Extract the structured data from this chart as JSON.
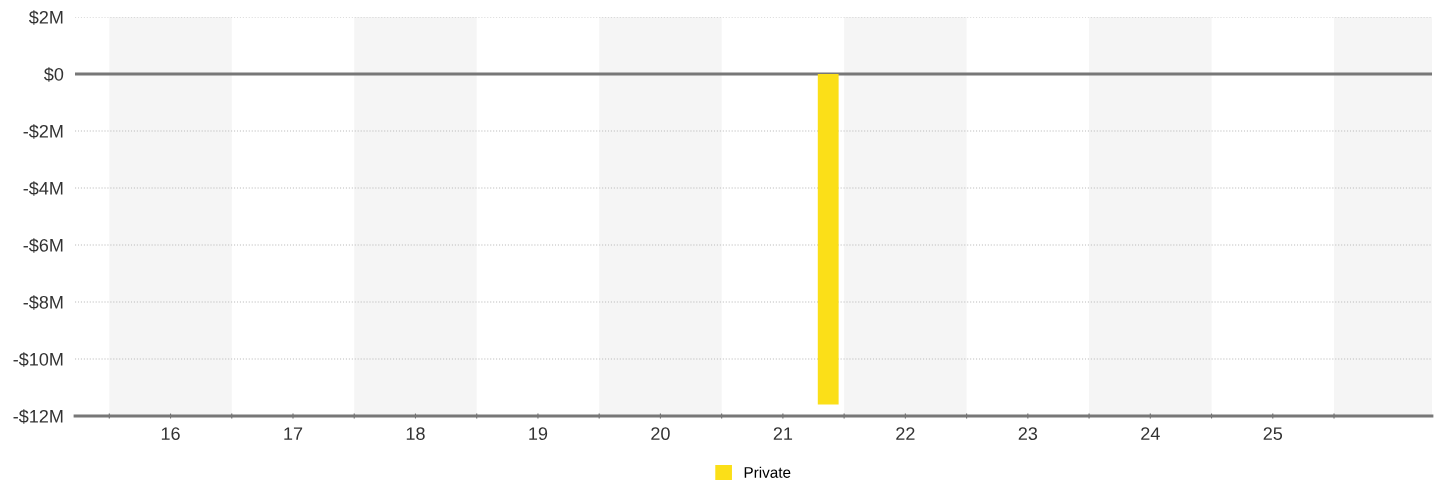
{
  "chart_data": {
    "type": "bar",
    "x": [
      21.37
    ],
    "series": [
      {
        "name": "Private",
        "color": "#fbdf18",
        "values": [
          -11.6
        ]
      }
    ],
    "xlim": [
      15.22,
      26.3
    ],
    "xticks": [
      {
        "value": 15.5,
        "label": null
      },
      16,
      {
        "value": 16.5,
        "label": null
      },
      17,
      {
        "value": 17.5,
        "label": null
      },
      18,
      {
        "value": 18.5,
        "label": null
      },
      19,
      {
        "value": 19.5,
        "label": null
      },
      20,
      {
        "value": 20.5,
        "label": null
      },
      21,
      {
        "value": 21.5,
        "label": null
      },
      22,
      {
        "value": 22.5,
        "label": null
      },
      23,
      {
        "value": 23.5,
        "label": null
      },
      24,
      {
        "value": 24.5,
        "label": null
      },
      25,
      {
        "value": 25.5,
        "label": null
      }
    ],
    "ylim": [
      -12,
      2
    ],
    "yticks": [
      {
        "value": -12,
        "label": "-$12M"
      },
      {
        "value": -10,
        "label": "-$10M"
      },
      {
        "value": -8,
        "label": "-$8M"
      },
      {
        "value": -6,
        "label": "-$6M"
      },
      {
        "value": -4,
        "label": "-$4M"
      },
      {
        "value": -2,
        "label": "-$2M"
      },
      {
        "value": 0,
        "label": "$0"
      },
      {
        "value": 2,
        "label": "$2M"
      }
    ],
    "bands": [
      {
        "axis": "x",
        "from": 15.5,
        "to": 16.5,
        "color": "#f5f5f5"
      },
      {
        "axis": "x",
        "from": 17.5,
        "to": 18.5,
        "color": "#f5f5f5"
      },
      {
        "axis": "x",
        "from": 19.5,
        "to": 20.5,
        "color": "#f5f5f5"
      },
      {
        "axis": "x",
        "from": 21.5,
        "to": 22.5,
        "color": "#f5f5f5"
      },
      {
        "axis": "x",
        "from": 23.5,
        "to": 24.5,
        "color": "#f5f5f5"
      },
      {
        "axis": "x",
        "from": 25.5,
        "to": 26.3,
        "color": "#f5f5f5"
      }
    ],
    "ref_lines": [
      {
        "axis": "y",
        "value": 0,
        "color": "#777777"
      }
    ],
    "grid": "y",
    "legend": "bottom"
  }
}
